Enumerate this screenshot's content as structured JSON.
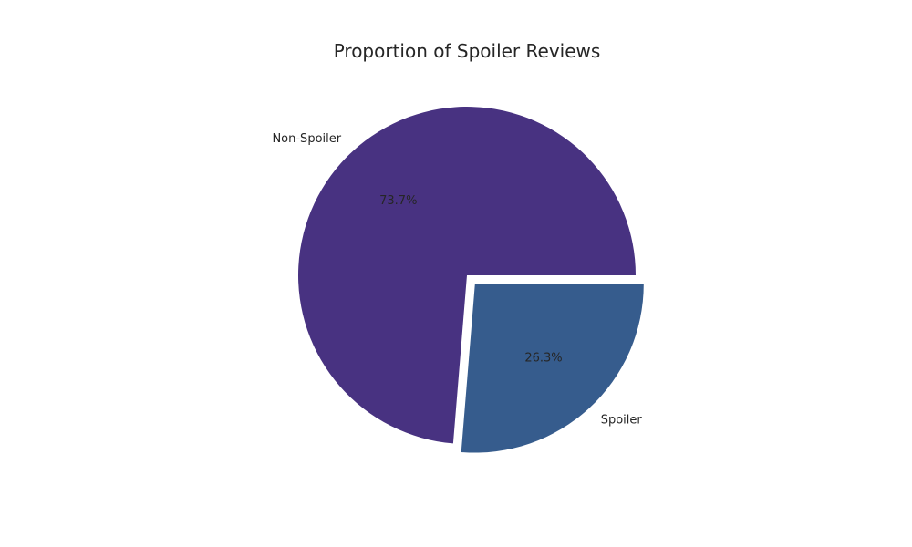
{
  "chart_data": {
    "type": "pie",
    "title": "Proportion of Spoiler Reviews",
    "slices": [
      {
        "label": "Non-Spoiler",
        "value": 73.7,
        "pct_label": "73.7%",
        "color": "#483281",
        "explode": false
      },
      {
        "label": "Spoiler",
        "value": 26.3,
        "pct_label": "26.3%",
        "color": "#365C8D",
        "explode": true
      }
    ],
    "start_angle_deg": 0,
    "direction": "counterclockwise",
    "legend": "none"
  }
}
